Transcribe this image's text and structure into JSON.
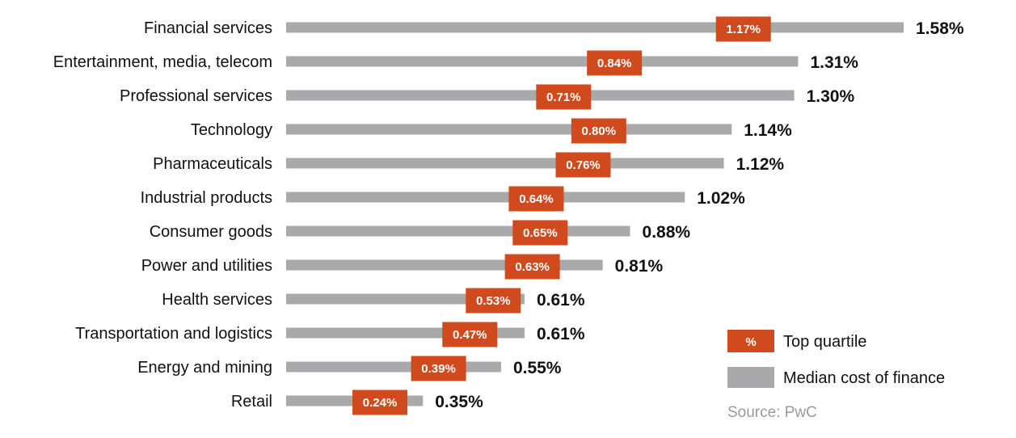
{
  "chart_data": {
    "type": "bar",
    "orientation": "horizontal",
    "categories": [
      "Financial services",
      "Entertainment, media, telecom",
      "Professional services",
      "Technology",
      "Pharmaceuticals",
      "Industrial products",
      "Consumer goods",
      "Power and utilities",
      "Health services",
      "Transportation and logistics",
      "Energy and mining",
      "Retail"
    ],
    "series": [
      {
        "name": "Median cost of finance",
        "values": [
          1.58,
          1.31,
          1.3,
          1.14,
          1.12,
          1.02,
          0.88,
          0.81,
          0.61,
          0.61,
          0.55,
          0.35
        ],
        "labels": [
          "1.58%",
          "1.31%",
          "1.30%",
          "1.14%",
          "1.12%",
          "1.02%",
          "0.88%",
          "0.81%",
          "0.61%",
          "0.61%",
          "0.55%",
          "0.35%"
        ],
        "color": "#a9a9ab"
      },
      {
        "name": "Top quartile",
        "values": [
          1.17,
          0.84,
          0.71,
          0.8,
          0.76,
          0.64,
          0.65,
          0.63,
          0.53,
          0.47,
          0.39,
          0.24
        ],
        "labels": [
          "1.17%",
          "0.84%",
          "0.71%",
          "0.80%",
          "0.76%",
          "0.64%",
          "0.65%",
          "0.63%",
          "0.53%",
          "0.47%",
          "0.39%",
          "0.24%"
        ],
        "color": "#d04a1e"
      }
    ],
    "unit": "%",
    "xlim": [
      0,
      1.58
    ],
    "grid": false,
    "legend_position": "bottom-right",
    "legend": [
      {
        "symbol": "%",
        "label": "Top quartile",
        "color": "#d04a1e"
      },
      {
        "symbol": "",
        "label": "Median cost of finance",
        "color": "#a9a9ab"
      }
    ]
  },
  "source": "Source: PwC"
}
